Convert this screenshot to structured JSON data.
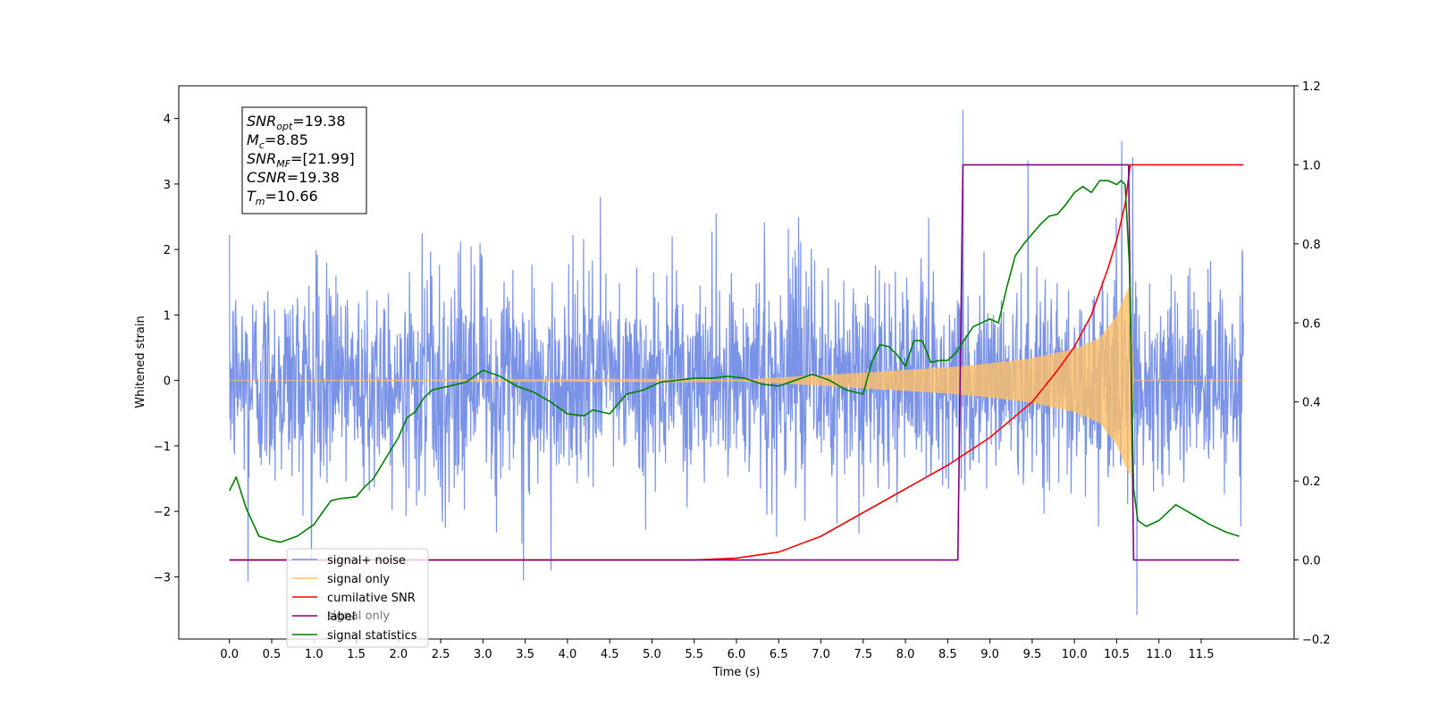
{
  "chart_data": {
    "type": "line",
    "xlabel": "Time (s)",
    "ylabel": "Whitened strain",
    "xlim": [
      -0.6,
      12.6
    ],
    "ylim": [
      -3.95,
      4.5
    ],
    "ylim_right": [
      -0.2,
      1.2
    ],
    "x_ticks": [
      "0.0",
      "0.5",
      "1.0",
      "1.5",
      "2.0",
      "2.5",
      "3.0",
      "3.5",
      "4.0",
      "4.5",
      "5.0",
      "5.5",
      "6.0",
      "6.5",
      "7.0",
      "7.5",
      "8.0",
      "8.5",
      "9.0",
      "9.5",
      "10.0",
      "10.5",
      "11.0",
      "11.5"
    ],
    "y_ticks_left": [
      "−3",
      "−2",
      "−1",
      "0",
      "1",
      "2",
      "3",
      "4"
    ],
    "y_ticks_right": [
      "−0.2",
      "0.0",
      "0.2",
      "0.4",
      "0.6",
      "0.8",
      "1.0",
      "1.2"
    ],
    "annotation": [
      {
        "sym": "SNR",
        "sub": "opt",
        "value": "=19.38"
      },
      {
        "sym": "M",
        "sub": "c",
        "value": "=8.85"
      },
      {
        "sym": "SNR",
        "sub": "MF",
        "value": "=[21.99]"
      },
      {
        "sym": "CSNR",
        "sub": "",
        "value": "=19.38"
      },
      {
        "sym": "T",
        "sub": "m",
        "value": "=10.66"
      }
    ],
    "legend": {
      "placement": "lower-left",
      "entries": [
        {
          "label": "signal+ noise",
          "color": "#7b93e6"
        },
        {
          "label": "signal only",
          "color": "#ffbf66"
        },
        {
          "label": "cumilative SNR",
          "color": "#ff0000"
        },
        {
          "label": "label",
          "color": "#800080"
        },
        {
          "label": "signal statistics",
          "color": "#008000"
        }
      ],
      "ghost_label": "signal only"
    },
    "series": [
      {
        "name": "signal+ noise",
        "axis": "left",
        "color": "#7b93e6",
        "x_range": [
          0.0,
          12.0
        ],
        "noise_sigma": 0.8,
        "spikes": [
          [
            8.68,
            4.12
          ],
          [
            10.56,
            3.65
          ],
          [
            10.69,
            3.4
          ],
          [
            9.45,
            3.35
          ],
          [
            10.74,
            -3.58
          ],
          [
            0.22,
            -3.07
          ],
          [
            3.48,
            -3.05
          ]
        ]
      },
      {
        "name": "signal only",
        "axis": "left",
        "color": "#ffbf66",
        "envelope_x": [
          0.0,
          6.0,
          7.0,
          8.0,
          8.5,
          9.0,
          9.5,
          10.0,
          10.3,
          10.5,
          10.6,
          10.66,
          10.7,
          12.0
        ],
        "envelope_amp": [
          0.0,
          0.01,
          0.08,
          0.16,
          0.2,
          0.26,
          0.34,
          0.48,
          0.65,
          0.98,
          1.3,
          1.45,
          0.0,
          0.0
        ]
      },
      {
        "name": "cumilative SNR",
        "axis": "right",
        "color": "#ff0000",
        "x": [
          0.0,
          5.5,
          6.0,
          6.5,
          7.0,
          7.5,
          8.0,
          8.5,
          9.0,
          9.5,
          9.8,
          10.0,
          10.2,
          10.4,
          10.5,
          10.6,
          10.66,
          10.7,
          12.0
        ],
        "y": [
          0.0,
          0.0,
          0.005,
          0.02,
          0.06,
          0.12,
          0.18,
          0.24,
          0.31,
          0.4,
          0.48,
          0.54,
          0.62,
          0.74,
          0.81,
          0.9,
          1.0,
          1.0,
          1.0
        ]
      },
      {
        "name": "label",
        "axis": "right",
        "color": "#800080",
        "x": [
          0.0,
          8.62,
          8.68,
          10.64,
          10.7,
          11.95
        ],
        "y": [
          0.0,
          0.0,
          1.0,
          1.0,
          0.0,
          0.0
        ]
      },
      {
        "name": "signal statistics",
        "axis": "right",
        "color": "#008000",
        "x": [
          0.0,
          0.08,
          0.2,
          0.35,
          0.5,
          0.6,
          0.8,
          1.0,
          1.1,
          1.2,
          1.3,
          1.5,
          1.6,
          1.7,
          1.8,
          2.0,
          2.1,
          2.2,
          2.3,
          2.4,
          2.5,
          2.6,
          2.8,
          2.9,
          3.0,
          3.2,
          3.4,
          3.6,
          3.8,
          4.0,
          4.2,
          4.3,
          4.5,
          4.7,
          4.9,
          5.1,
          5.3,
          5.5,
          5.7,
          5.9,
          6.1,
          6.3,
          6.5,
          6.7,
          6.9,
          7.1,
          7.3,
          7.5,
          7.6,
          7.7,
          7.8,
          7.9,
          8.0,
          8.1,
          8.2,
          8.3,
          8.4,
          8.5,
          8.6,
          8.8,
          9.0,
          9.1,
          9.2,
          9.3,
          9.4,
          9.5,
          9.6,
          9.7,
          9.8,
          9.9,
          10.0,
          10.1,
          10.2,
          10.3,
          10.4,
          10.5,
          10.55,
          10.6,
          10.65,
          10.7,
          10.75,
          10.85,
          11.0,
          11.2,
          11.4,
          11.6,
          11.8,
          11.95
        ],
        "y": [
          0.175,
          0.21,
          0.13,
          0.06,
          0.05,
          0.045,
          0.06,
          0.09,
          0.12,
          0.15,
          0.155,
          0.16,
          0.185,
          0.205,
          0.24,
          0.31,
          0.36,
          0.375,
          0.41,
          0.43,
          0.435,
          0.44,
          0.45,
          0.465,
          0.48,
          0.465,
          0.44,
          0.425,
          0.4,
          0.37,
          0.365,
          0.38,
          0.37,
          0.42,
          0.43,
          0.45,
          0.455,
          0.46,
          0.46,
          0.465,
          0.46,
          0.445,
          0.44,
          0.455,
          0.47,
          0.455,
          0.43,
          0.42,
          0.5,
          0.545,
          0.54,
          0.52,
          0.49,
          0.555,
          0.555,
          0.5,
          0.505,
          0.505,
          0.525,
          0.59,
          0.61,
          0.6,
          0.69,
          0.77,
          0.8,
          0.825,
          0.85,
          0.87,
          0.875,
          0.9,
          0.93,
          0.945,
          0.93,
          0.96,
          0.96,
          0.95,
          0.96,
          0.95,
          0.75,
          0.18,
          0.1,
          0.085,
          0.1,
          0.14,
          0.115,
          0.09,
          0.07,
          0.06
        ]
      }
    ]
  }
}
